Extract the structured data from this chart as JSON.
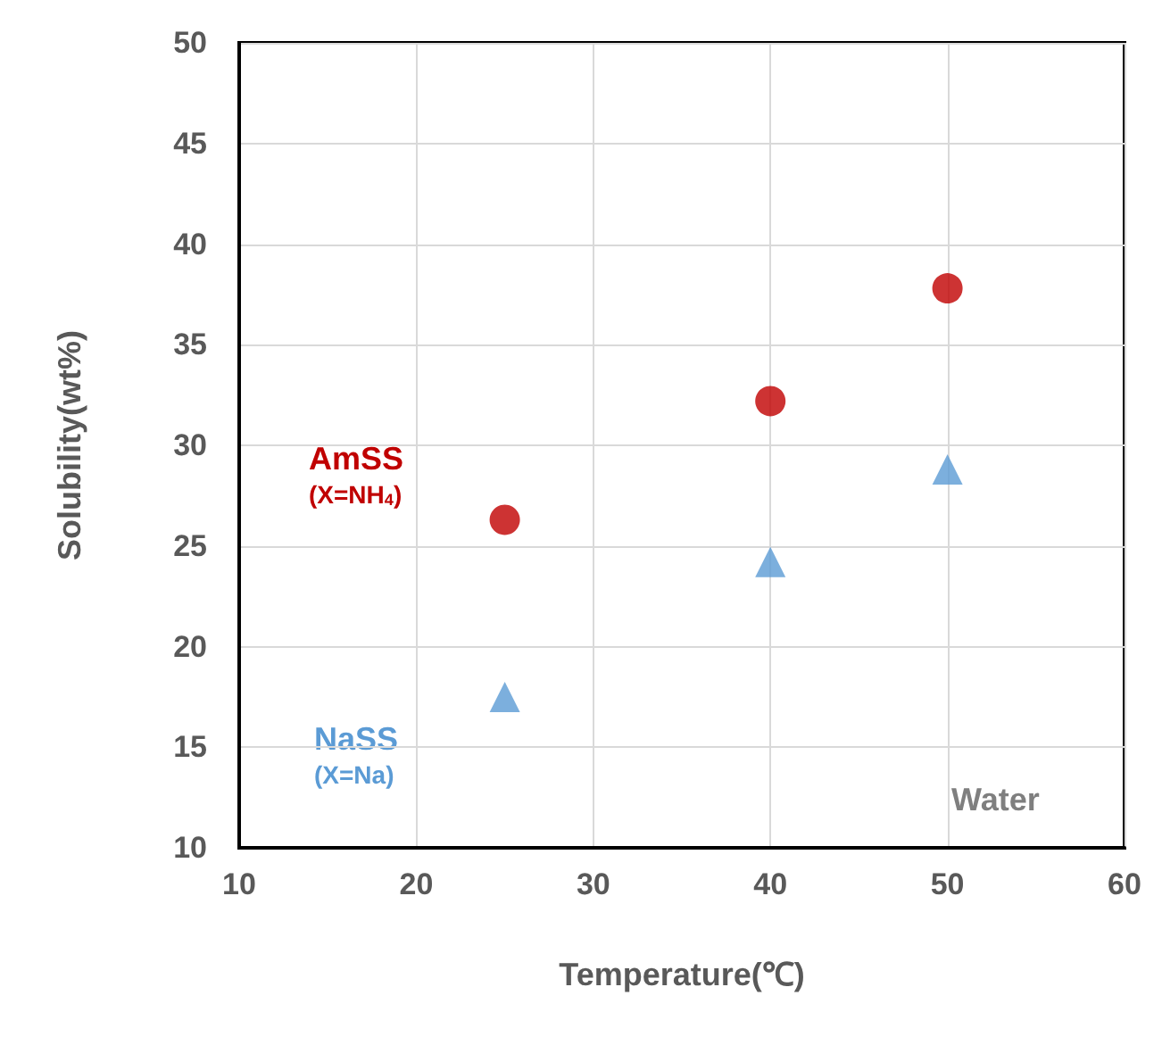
{
  "chart_data": {
    "type": "scatter",
    "xlabel": "Temperature(℃)",
    "ylabel": "Solubility(wt%)",
    "x": [
      25,
      40,
      50
    ],
    "series": [
      {
        "name": "AmSS",
        "color": "#c00000",
        "marker": "circle",
        "values": [
          26.3,
          32.2,
          37.8
        ]
      },
      {
        "name": "NaSS",
        "color": "#5b9bd5",
        "marker": "triangle",
        "values": [
          17.5,
          24.2,
          28.8
        ]
      }
    ],
    "annotations": [
      "(X=NH$_{4}$)",
      "(X=Na)",
      "Water"
    ],
    "xlim": [
      10,
      60
    ],
    "xticks": [
      10,
      20,
      30,
      40,
      50,
      60
    ],
    "ylim": [
      10,
      50
    ],
    "yticks": [
      10,
      15,
      20,
      25,
      30,
      35,
      40,
      45,
      50
    ],
    "grid": true
  }
}
